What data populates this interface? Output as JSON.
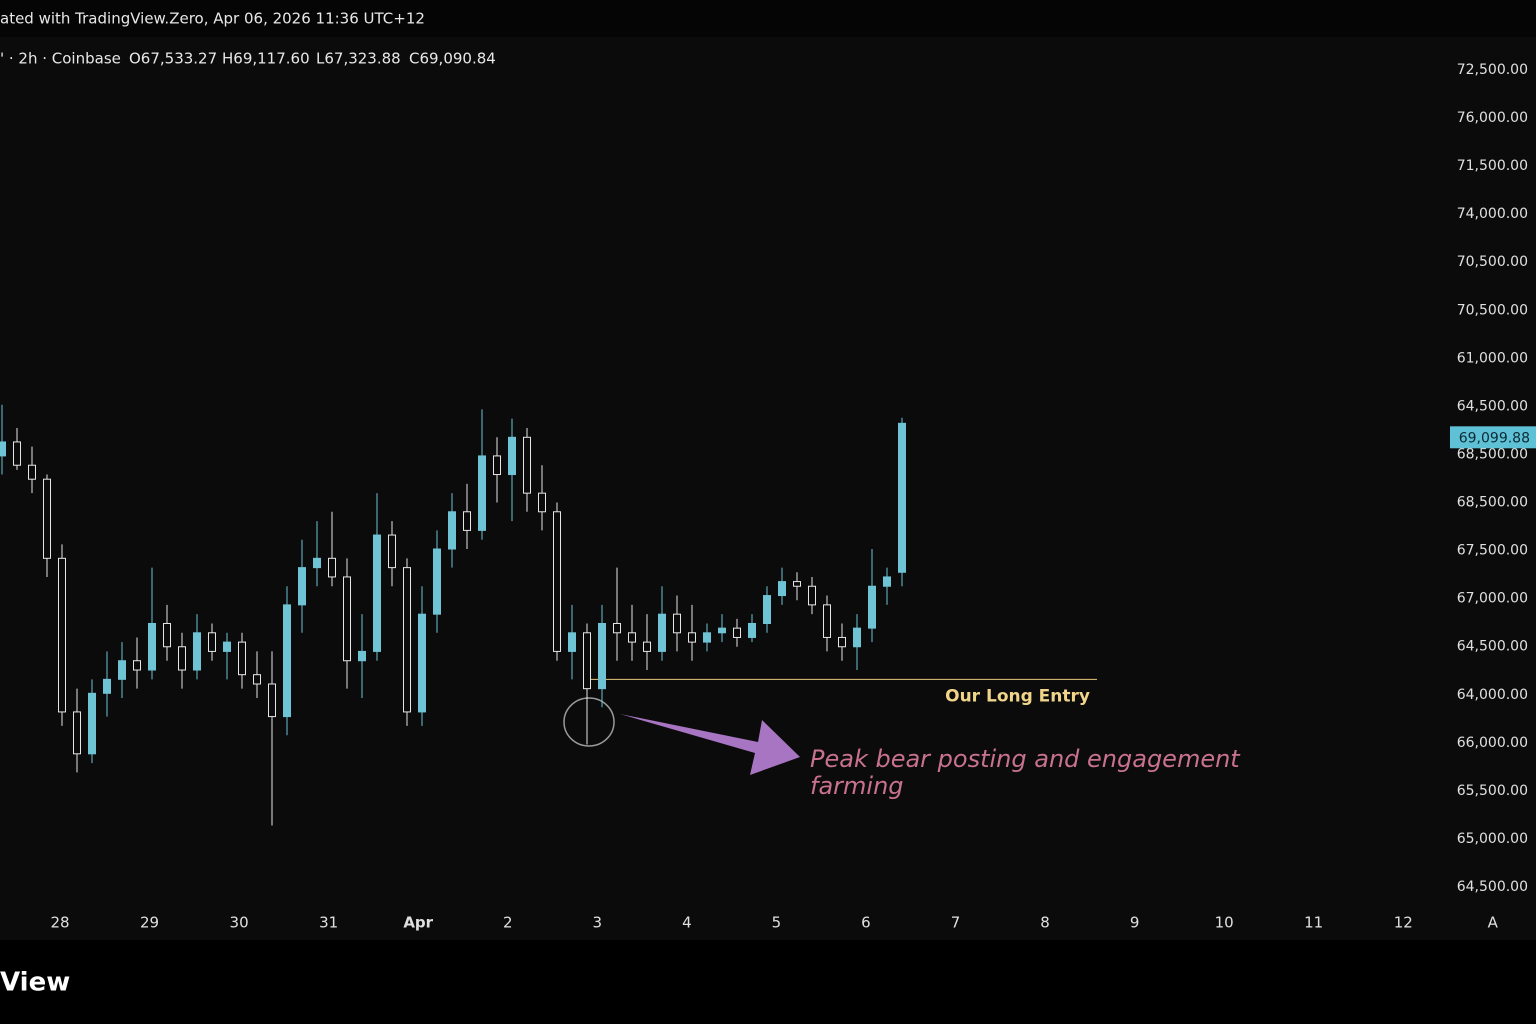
{
  "header": {
    "title": "ated with TradingView.Zero, Apr 06, 2026 11:36 UTC+12",
    "symbol": "' · 2h · Coinbase",
    "open": "O67,533.27",
    "high": "H69,117.60",
    "low": "L67,323.88",
    "close": "C69,090.84"
  },
  "footer": {
    "brand": "View"
  },
  "chart_data": {
    "type": "candlestick",
    "ylim": [
      63700,
      73400
    ],
    "up_color": "#6ec3d4",
    "down_color": "#e6e6e6",
    "candles": [
      [
        68900,
        69450,
        68700,
        69050
      ],
      [
        69050,
        69200,
        68750,
        68800
      ],
      [
        68800,
        69000,
        68500,
        68650
      ],
      [
        68650,
        68700,
        67600,
        67800
      ],
      [
        67800,
        67950,
        66000,
        66150
      ],
      [
        66150,
        66400,
        65500,
        65700
      ],
      [
        65700,
        66500,
        65600,
        66350
      ],
      [
        66350,
        66800,
        66100,
        66500
      ],
      [
        66500,
        66900,
        66300,
        66700
      ],
      [
        66700,
        66950,
        66400,
        66600
      ],
      [
        66600,
        67700,
        66500,
        67100
      ],
      [
        67100,
        67300,
        66700,
        66850
      ],
      [
        66850,
        67000,
        66400,
        66600
      ],
      [
        66600,
        67200,
        66500,
        67000
      ],
      [
        67000,
        67100,
        66700,
        66800
      ],
      [
        66800,
        67000,
        66500,
        66900
      ],
      [
        66900,
        67000,
        66400,
        66550
      ],
      [
        66550,
        66800,
        66300,
        66450
      ],
      [
        66450,
        66800,
        64930,
        66100
      ],
      [
        66100,
        67500,
        65900,
        67300
      ],
      [
        67300,
        68000,
        67000,
        67700
      ],
      [
        67700,
        68200,
        67500,
        67800
      ],
      [
        67800,
        68300,
        67500,
        67600
      ],
      [
        67600,
        67800,
        66400,
        66700
      ],
      [
        66700,
        67200,
        66300,
        66800
      ],
      [
        66800,
        68500,
        66700,
        68050
      ],
      [
        68050,
        68200,
        67500,
        67700
      ],
      [
        67700,
        67800,
        66000,
        66150
      ],
      [
        66150,
        67500,
        66000,
        67200
      ],
      [
        67200,
        68100,
        67000,
        67900
      ],
      [
        67900,
        68500,
        67700,
        68300
      ],
      [
        68300,
        68600,
        67900,
        68100
      ],
      [
        68100,
        69400,
        68000,
        68900
      ],
      [
        68900,
        69100,
        68400,
        68700
      ],
      [
        68700,
        69300,
        68200,
        69100
      ],
      [
        69100,
        69200,
        68300,
        68500
      ],
      [
        68500,
        68800,
        68100,
        68300
      ],
      [
        68300,
        68400,
        66700,
        66800
      ],
      [
        66800,
        67300,
        66500,
        67000
      ],
      [
        67000,
        67100,
        65800,
        66400
      ],
      [
        66400,
        67300,
        66200,
        67100
      ],
      [
        67100,
        67700,
        66700,
        67000
      ],
      [
        67000,
        67300,
        66700,
        66900
      ],
      [
        66900,
        67200,
        66600,
        66800
      ],
      [
        66800,
        67500,
        66700,
        67200
      ],
      [
        67200,
        67400,
        66800,
        67000
      ],
      [
        67000,
        67300,
        66700,
        66900
      ],
      [
        66900,
        67100,
        66800,
        67000
      ],
      [
        67000,
        67200,
        66900,
        67050
      ],
      [
        67050,
        67150,
        66850,
        66950
      ],
      [
        66950,
        67200,
        66900,
        67100
      ],
      [
        67100,
        67500,
        67000,
        67400
      ],
      [
        67400,
        67700,
        67300,
        67550
      ],
      [
        67550,
        67650,
        67350,
        67500
      ],
      [
        67500,
        67600,
        67200,
        67300
      ],
      [
        67300,
        67400,
        66800,
        66950
      ],
      [
        66950,
        67100,
        66700,
        66850
      ],
      [
        66850,
        67200,
        66600,
        67050
      ],
      [
        67050,
        67900,
        66900,
        67500
      ],
      [
        67500,
        67700,
        67300,
        67600
      ],
      [
        67650,
        69310,
        67500,
        69250
      ]
    ],
    "price_labels": [
      "72,500.00",
      "76,000.00",
      "71,500.00",
      "74,000.00",
      "70,500.00",
      "70,500.00",
      "61,000.00",
      "64,500.00",
      "68,500.00",
      "68,500.00",
      "67,500.00",
      "67,000.00",
      "64,500.00",
      "64,000.00",
      "66,000.00",
      "65,500.00",
      "65,000.00",
      "64,500.00"
    ],
    "last_price": {
      "value": 69099.88,
      "label": "69,099.88"
    },
    "categories": [
      "28",
      "29",
      "30",
      "31",
      "Apr",
      "2",
      "3",
      "4",
      "5",
      "6",
      "7",
      "8",
      "9",
      "10",
      "11",
      "12",
      "A"
    ],
    "entry": {
      "value": 66500,
      "label": "Our Long Entry"
    },
    "annotation": "Peak bear posting and engagement farming"
  }
}
